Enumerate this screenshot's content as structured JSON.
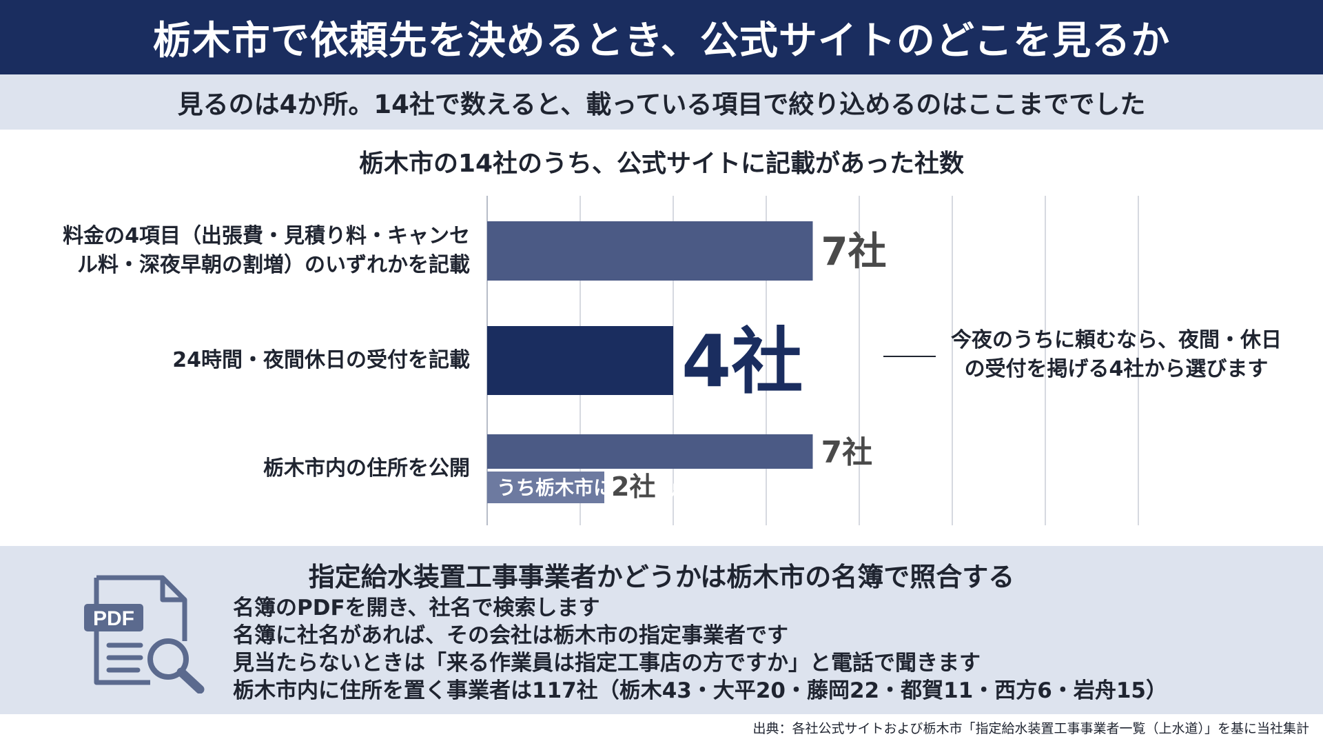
{
  "header": {
    "title": "栃木市で依頼先を決めるとき、公式サイトのどこを見るか"
  },
  "subheader": {
    "text": "見るのは4か所。14社で数えると、載っている項目で絞り込めるのはここまででした"
  },
  "colors": {
    "header_bg": "#1a2d5f",
    "panel_bg": "#dde3ee",
    "bar_regular": "#4b5a85",
    "bar_highlight": "#1a2d5f",
    "bar_sub": "#6d7aa0",
    "value_regular": "#4a4a4a"
  },
  "chart_data": {
    "type": "bar",
    "orientation": "horizontal",
    "title": "栃木市の14社のうち、公式サイトに記載があった社数",
    "xlim": [
      0,
      14
    ],
    "grid": true,
    "categories": [
      "料金の4項目（出張費・見積り料・キャンセル料・深夜早朝の割増）のいずれかを記載",
      "24時間・夜間休日の受付を記載",
      "栃木市内の住所を公開"
    ],
    "category_lines": [
      [
        "料金の4項目（出張費・見積り料・キャンセ",
        "ル料・深夜早朝の割増）のいずれかを記載"
      ],
      [
        "24時間・夜間休日の受付を記載"
      ],
      [
        "栃木市内の住所を公開"
      ]
    ],
    "values": [
      7,
      4,
      7
    ],
    "value_labels": [
      "7社",
      "4社",
      "7社"
    ],
    "highlight_index": 1,
    "sub_bar": {
      "label": "うち栃木市に待機拠点と明記",
      "value": 2,
      "value_label": "2社",
      "parent_index": 2
    },
    "annotation": {
      "lines": [
        "今夜のうちに頼むなら、夜間・休日",
        "の受付を掲げる4社から選びます"
      ],
      "target_index": 1
    }
  },
  "bottom": {
    "title": "指定給水装置工事事業者かどうかは栃木市の名簿で照合する",
    "icon": "pdf-search-icon",
    "icon_text": "PDF",
    "notes": [
      "名簿のPDFを開き、社名で検索します",
      "名簿に社名があれば、その会社は栃木市の指定事業者です",
      "見当たらないときは「来る作業員は指定工事店の方ですか」と電話で聞きます",
      "栃木市内に住所を置く事業者は117社（栃木43・大平20・藤岡22・都賀11・西方6・岩舟15）"
    ]
  },
  "source": "出典：各社公式サイトおよび栃木市「指定給水装置工事事業者一覧（上水道）」を基に当社集計"
}
